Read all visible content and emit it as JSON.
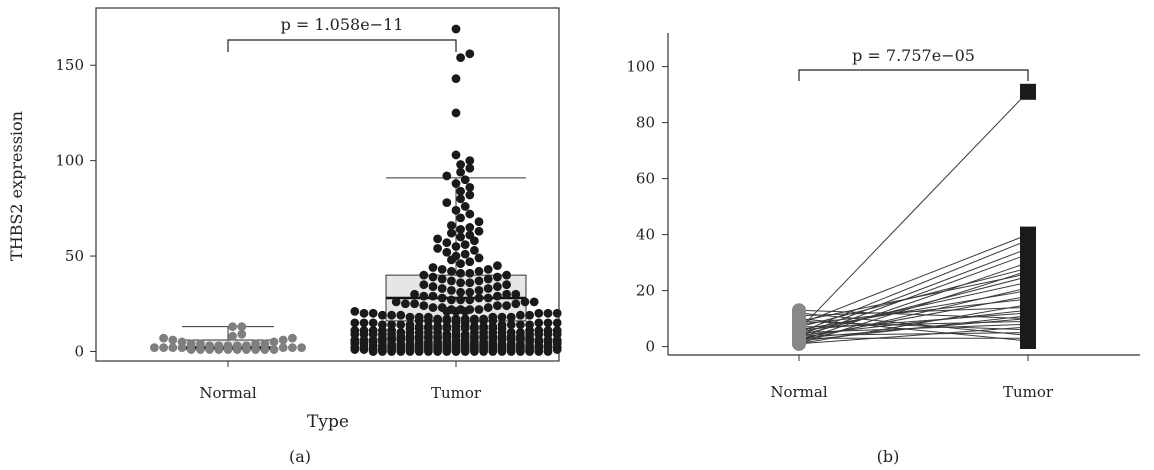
{
  "chart_data": [
    {
      "type": "boxplot-beeswarm",
      "panel_label": "(a)",
      "xlabel": "Type",
      "ylabel": "THBS2 expression",
      "categories": [
        "Normal",
        "Tumor"
      ],
      "ylim": [
        -5,
        180
      ],
      "yticks": [
        0,
        50,
        100,
        150
      ],
      "annotation": "p = 1.058e−11",
      "box_stats": [
        {
          "category": "Normal",
          "whisker_low": 1,
          "q1": 1,
          "median": 2,
          "q3": 6,
          "whisker_high": 13
        },
        {
          "category": "Tumor",
          "whisker_low": 0,
          "q1": 16,
          "median": 28,
          "q3": 40,
          "whisker_high": 91
        }
      ],
      "series": [
        {
          "name": "Normal",
          "color": "#7f7f7f",
          "values": [
            1,
            1,
            1,
            1,
            1,
            1,
            1,
            1,
            1,
            1,
            2,
            2,
            2,
            2,
            2,
            2,
            2,
            2,
            2,
            2,
            3,
            3,
            3,
            3,
            3,
            4,
            4,
            4,
            4,
            5,
            5,
            6,
            6,
            7,
            7,
            8,
            9,
            13,
            13
          ]
        },
        {
          "name": "Tumor",
          "color": "#1a1a1a",
          "values": [
            0,
            0,
            0,
            0,
            0,
            0,
            0,
            0,
            0,
            0,
            0,
            0,
            0,
            0,
            0,
            0,
            0,
            0,
            0,
            0,
            1,
            1,
            1,
            1,
            1,
            1,
            1,
            1,
            1,
            1,
            1,
            1,
            1,
            1,
            1,
            1,
            1,
            1,
            1,
            1,
            1,
            1,
            2,
            2,
            2,
            2,
            2,
            2,
            2,
            2,
            2,
            2,
            2,
            2,
            2,
            2,
            2,
            2,
            2,
            2,
            2,
            2,
            2,
            2,
            3,
            3,
            3,
            3,
            3,
            3,
            3,
            3,
            3,
            3,
            3,
            3,
            3,
            3,
            3,
            3,
            3,
            3,
            3,
            3,
            4,
            4,
            4,
            4,
            4,
            4,
            4,
            4,
            4,
            4,
            4,
            4,
            4,
            4,
            4,
            4,
            4,
            4,
            5,
            5,
            5,
            5,
            5,
            5,
            5,
            5,
            5,
            5,
            5,
            5,
            5,
            5,
            5,
            5,
            5,
            6,
            6,
            6,
            6,
            6,
            6,
            6,
            6,
            6,
            6,
            6,
            6,
            6,
            6,
            6,
            6,
            7,
            7,
            7,
            7,
            7,
            7,
            7,
            7,
            7,
            7,
            7,
            7,
            7,
            7,
            7,
            8,
            8,
            8,
            8,
            8,
            8,
            8,
            8,
            8,
            8,
            8,
            8,
            8,
            8,
            9,
            9,
            9,
            9,
            9,
            9,
            9,
            9,
            9,
            9,
            9,
            9,
            10,
            10,
            10,
            10,
            10,
            10,
            10,
            10,
            10,
            10,
            10,
            11,
            11,
            11,
            11,
            11,
            11,
            11,
            11,
            11,
            11,
            12,
            12,
            12,
            12,
            12,
            12,
            12,
            12,
            12,
            12,
            13,
            13,
            13,
            13,
            13,
            13,
            13,
            13,
            13,
            14,
            14,
            14,
            14,
            14,
            14,
            14,
            14,
            15,
            15,
            15,
            15,
            15,
            15,
            15,
            15,
            16,
            16,
            16,
            16,
            16,
            16,
            16,
            17,
            17,
            17,
            17,
            17,
            17,
            18,
            18,
            18,
            18,
            18,
            18,
            19,
            19,
            19,
            19,
            19,
            20,
            20,
            20,
            20,
            20,
            21,
            21,
            21,
            21,
            22,
            22,
            22,
            22,
            23,
            23,
            23,
            24,
            24,
            24,
            25,
            25,
            25,
            26,
            26,
            26,
            27,
            27,
            27,
            28,
            28,
            28,
            29,
            29,
            29,
            30,
            30,
            30,
            31,
            31,
            32,
            32,
            33,
            33,
            34,
            34,
            35,
            35,
            36,
            36,
            37,
            37,
            38,
            38,
            39,
            39,
            40,
            40,
            41,
            41,
            42,
            42,
            43,
            43,
            44,
            45,
            46,
            47,
            48,
            49,
            50,
            51,
            52,
            53,
            54,
            55,
            56,
            57,
            58,
            59,
            60,
            61,
            62,
            63,
            64,
            65,
            66,
            68,
            70,
            72,
            74,
            76,
            78,
            80,
            82,
            84,
            86,
            88,
            90,
            92,
            94,
            96,
            98,
            100,
            103,
            125,
            143,
            154,
            156,
            169
          ]
        }
      ]
    },
    {
      "type": "paired-line",
      "panel_label": "(b)",
      "categories": [
        "Normal",
        "Tumor"
      ],
      "ylim": [
        -3,
        112
      ],
      "yticks": [
        0,
        20,
        40,
        60,
        80,
        100
      ],
      "annotation": "p = 7.757e−05",
      "pairs": [
        [
          6,
          91
        ],
        [
          8,
          40
        ],
        [
          5,
          38
        ],
        [
          4,
          35
        ],
        [
          3,
          33
        ],
        [
          2,
          30
        ],
        [
          7,
          28
        ],
        [
          1,
          27
        ],
        [
          9,
          26
        ],
        [
          4,
          25
        ],
        [
          5,
          23
        ],
        [
          2,
          21
        ],
        [
          6,
          20
        ],
        [
          3,
          18
        ],
        [
          8,
          17
        ],
        [
          1,
          15
        ],
        [
          11,
          14
        ],
        [
          4,
          13
        ],
        [
          6,
          12
        ],
        [
          2,
          11
        ],
        [
          13,
          10
        ],
        [
          3,
          10
        ],
        [
          7,
          9
        ],
        [
          5,
          8
        ],
        [
          1,
          7
        ],
        [
          9,
          6
        ],
        [
          4,
          5
        ],
        [
          12,
          4
        ],
        [
          3,
          3
        ],
        [
          10,
          2
        ]
      ],
      "colors": {
        "normal": "#888888",
        "tumor": "#1a1a1a",
        "line": "#3a3a3a"
      }
    }
  ]
}
